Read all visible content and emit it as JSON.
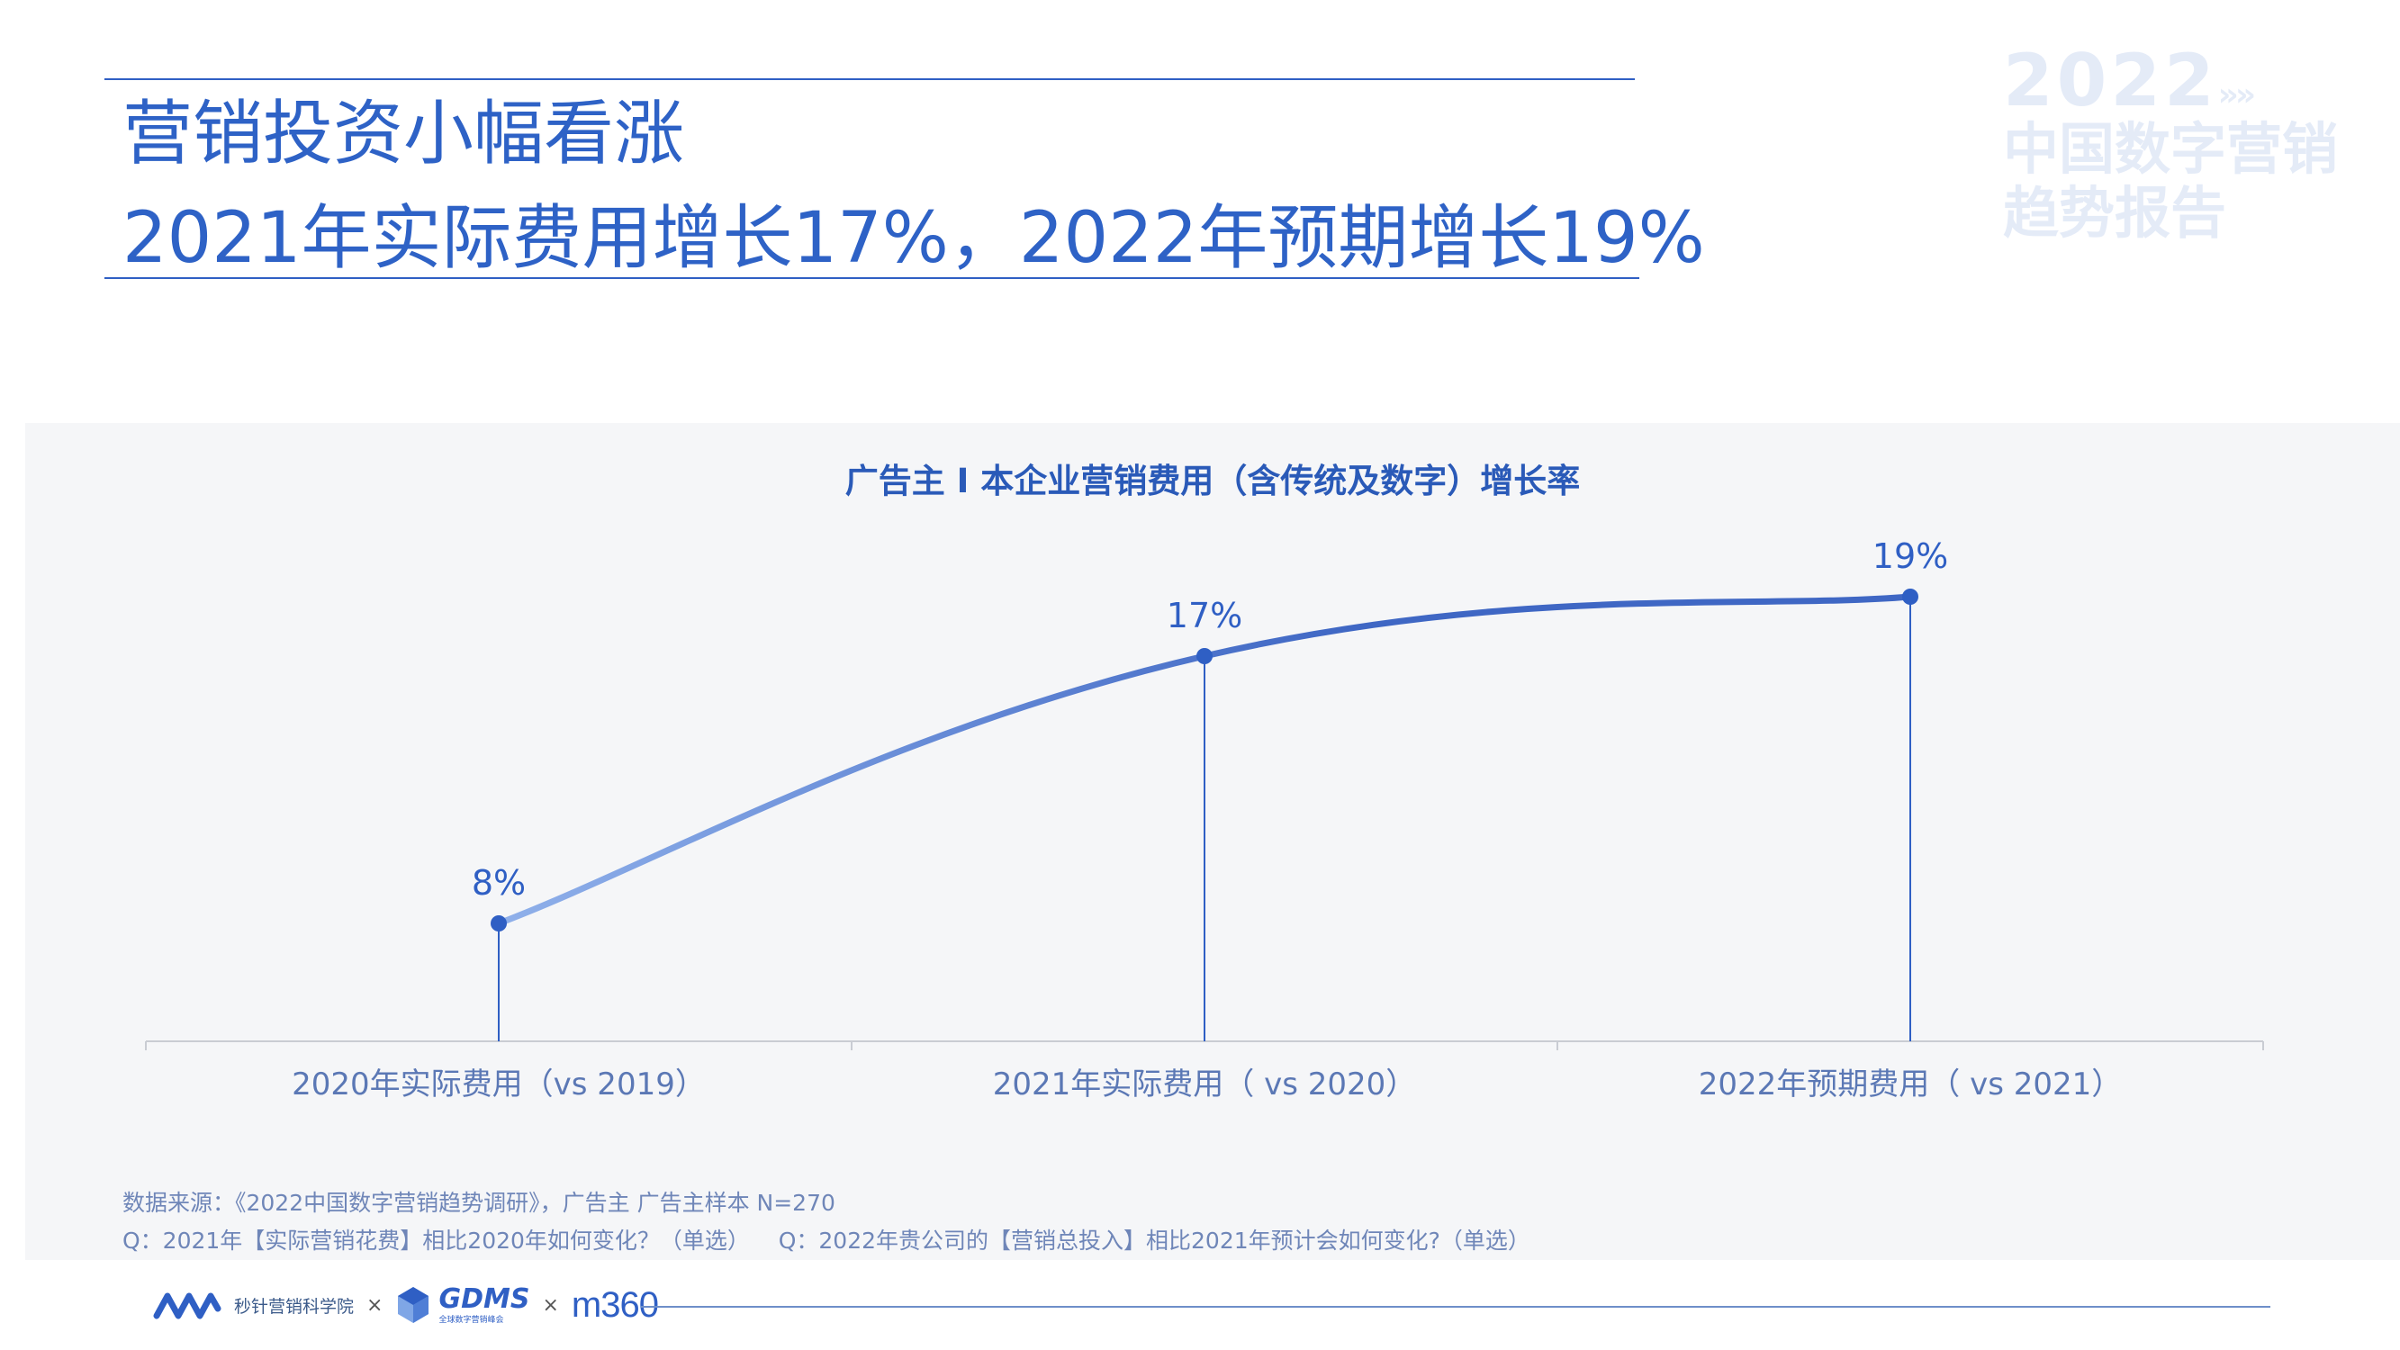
{
  "header": {
    "title_line1": "营销投资小幅看涨",
    "title_line2": "2021年实际费用增长17%，2022年预期增长19%"
  },
  "watermark": {
    "year": "2022",
    "arrows": "»»",
    "name_line1": "中国数字营销",
    "name_line2": "趋势报告"
  },
  "chart_data": {
    "type": "line",
    "title": "广告主 I 本企业营销费用（含传统及数字）增长率",
    "categories": [
      "2020年实际费用（vs 2019）",
      "2021年实际费用（ vs 2020）",
      "2022年预期费用（ vs 2021）"
    ],
    "series": [
      {
        "values": [
          8,
          17,
          19
        ],
        "labels": [
          "8%",
          "17%",
          "19%"
        ]
      }
    ],
    "ylim": [
      0,
      20
    ],
    "xlabel": "",
    "ylabel": "",
    "grid": false,
    "colors": {
      "line_start": "#8fb0ea",
      "line_end": "#3f67c4",
      "point": "#2f5fc4",
      "axis": "#c9ccd3"
    }
  },
  "notes": {
    "source": "数据来源：《2022中国数字营销趋势调研》，广告主 广告主样本 N=270",
    "questions": "Q：2021年【实际营销花费】相比2020年如何变化？（单选）    Q：2022年贵公司的【营销总投入】相比2021年预计会如何变化?（单选）"
  },
  "footer": {
    "logo1_text": "秒针营销科学院",
    "sep": "×",
    "gdms_word": "GDMS",
    "gdms_sub": "全球数字营销峰会",
    "m360": "m360"
  }
}
